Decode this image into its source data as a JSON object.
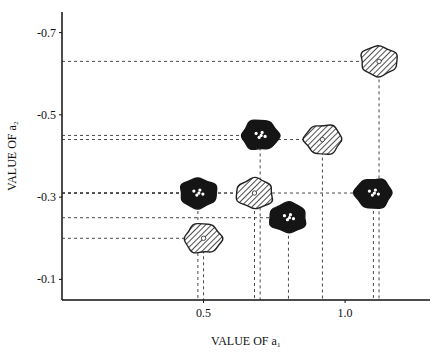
{
  "chart_data": {
    "type": "scatter",
    "x_label": "VALUE OF a₁",
    "y_label": "VALUE OF a₂",
    "xlim": [
      0,
      1.3
    ],
    "ylim": [
      -0.05,
      -0.75
    ],
    "xticks": [
      0.5,
      {
        "value": 1,
        "label": "1.0"
      }
    ],
    "yticks": [
      -0.1,
      -0.3,
      -0.5,
      -0.7
    ],
    "grid": false,
    "series": [
      {
        "color": "#222222",
        "marker": "hatched",
        "x": [
          0.5,
          0.68,
          0.92,
          1.12
        ],
        "values": [
          -0.2,
          -0.31,
          -0.44,
          -0.63
        ]
      },
      {
        "color": "#151515",
        "marker": "filled",
        "x": [
          0.48,
          0.7,
          0.8,
          1.1
        ],
        "values": [
          -0.31,
          -0.45,
          -0.25,
          -0.31
        ]
      }
    ]
  }
}
